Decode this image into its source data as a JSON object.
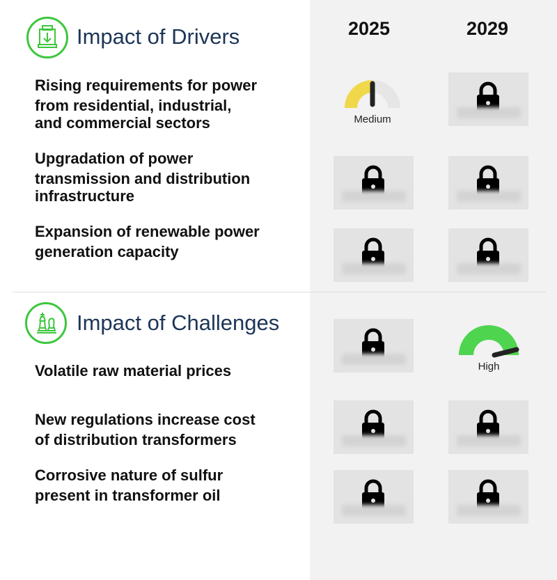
{
  "years": [
    "2025",
    "2029"
  ],
  "drivers": {
    "title": "Impact of Drivers",
    "icon": "money-machine-icon",
    "items": [
      {
        "lines": [
          "Rising requirements for power",
          "from residential, industrial,",
          "and commercial sectors"
        ]
      },
      {
        "lines": [
          "Upgradation of power",
          "transmission and distribution",
          "infrastructure"
        ]
      },
      {
        "lines": [
          "Expansion of renewable power",
          "generation capacity"
        ]
      }
    ]
  },
  "challenges": {
    "title": "Impact of Challenges",
    "icon": "chess-pieces-icon",
    "items": [
      {
        "lines": [
          "Volatile raw material prices"
        ]
      },
      {
        "lines": [
          "New regulations increase cost",
          "of distribution transformers"
        ]
      },
      {
        "lines": [
          "Corrosive nature of sulfur",
          "present in transformer oil"
        ]
      }
    ]
  },
  "gauges": {
    "medium": {
      "label": "Medium",
      "level": 0.5,
      "color": "#f0d84a"
    },
    "high": {
      "label": "High",
      "level": 1.0,
      "color": "#4fd44f"
    }
  },
  "colors": {
    "accent_green": "#3cc73c",
    "title_navy": "#1c3557"
  }
}
